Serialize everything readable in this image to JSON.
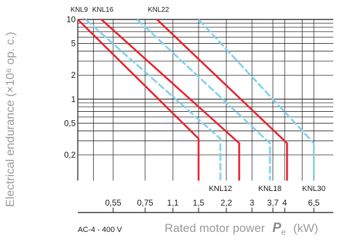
{
  "chart_data": {
    "type": "line",
    "ylabel": "Electrical endurance (×10⁶ op. c.)",
    "xlabel": "Rated motor power",
    "xlabel_symbol": "P",
    "xlabel_subscript": "e",
    "xlabel_unit": "(kW)",
    "note": "AC-4 - 400 V",
    "y_scale": "log",
    "y_ticks": [
      {
        "value": 10,
        "label": "10"
      },
      {
        "value": 5,
        "label": "5"
      },
      {
        "value": 2,
        "label": "2"
      },
      {
        "value": 1,
        "label": "1"
      },
      {
        "value": 0.5,
        "label": "0,5"
      },
      {
        "value": 0.2,
        "label": "0,2"
      }
    ],
    "x_ticks": [
      {
        "value": 0.55,
        "label": "0,55"
      },
      {
        "value": 0.75,
        "label": "0,75"
      },
      {
        "value": 1.1,
        "label": "1,1"
      },
      {
        "value": 1.5,
        "label": "1,5"
      },
      {
        "value": 2.2,
        "label": "2,2"
      },
      {
        "value": 3,
        "label": "3"
      },
      {
        "value": 3.7,
        "label": "3,7"
      },
      {
        "value": 4,
        "label": "4"
      },
      {
        "value": 6.5,
        "label": "6,5"
      }
    ],
    "series": [
      {
        "name": "KNL9",
        "color": "#e8202a",
        "style": "solid",
        "label_pos": "top",
        "points": [
          [
            0.1,
            10
          ],
          [
            1.5,
            0.32
          ],
          [
            1.5,
            0.12
          ]
        ]
      },
      {
        "name": "KNL12",
        "color": "#7fd0ee",
        "style": "dashed",
        "label_pos": "bottom",
        "points": [
          [
            0.2,
            10
          ],
          [
            2.05,
            0.32
          ],
          [
            2.05,
            0.12
          ]
        ]
      },
      {
        "name": "KNL16",
        "color": "#e8202a",
        "style": "solid",
        "label_pos": "top",
        "points": [
          [
            0.4,
            10
          ],
          [
            2.6,
            0.28
          ],
          [
            2.6,
            0.12
          ]
        ]
      },
      {
        "name": "KNL18",
        "color": "#7fd0ee",
        "style": "dashed",
        "label_pos": "bottom",
        "points": [
          [
            0.7,
            10
          ],
          [
            3.6,
            0.28
          ],
          [
            3.6,
            0.12
          ]
        ]
      },
      {
        "name": "KNL22",
        "color": "#e8202a",
        "style": "solid",
        "label_pos": "top",
        "points": [
          [
            0.9,
            10
          ],
          [
            4.2,
            0.28
          ],
          [
            4.2,
            0.12
          ]
        ]
      },
      {
        "name": "KNL30",
        "color": "#7fd0ee",
        "style": "dashed",
        "label_pos": "bottom",
        "points": [
          [
            1.5,
            10
          ],
          [
            6.5,
            0.28
          ],
          [
            6.5,
            0.12
          ]
        ]
      }
    ]
  }
}
